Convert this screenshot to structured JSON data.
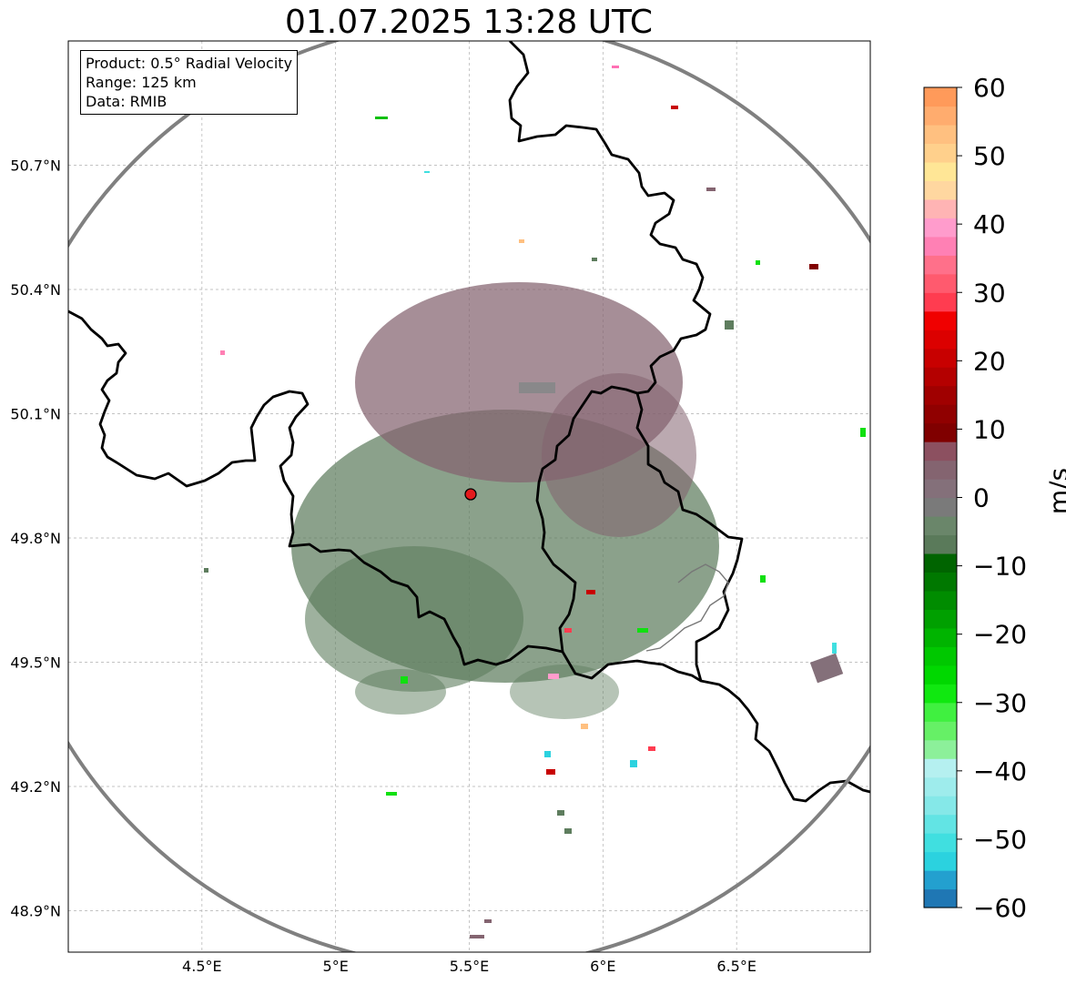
{
  "title": "01.07.2025 13:28 UTC",
  "infobox": {
    "product": "Product: 0.5° Radial Velocity",
    "range": "Range: 125 km",
    "data": "Data: RMIB"
  },
  "map": {
    "lon_range": [
      4.0,
      7.0
    ],
    "lat_range": [
      48.8,
      51.0
    ],
    "lon_ticks": [
      {
        "value": 4.5,
        "label": "4.5°E"
      },
      {
        "value": 5.0,
        "label": "5°E"
      },
      {
        "value": 5.5,
        "label": "5.5°E"
      },
      {
        "value": 6.0,
        "label": "6°E"
      },
      {
        "value": 6.5,
        "label": "6.5°E"
      }
    ],
    "lat_ticks": [
      {
        "value": 50.7,
        "label": "50.7°N"
      },
      {
        "value": 50.4,
        "label": "50.4°N"
      },
      {
        "value": 50.1,
        "label": "50.1°N"
      },
      {
        "value": 49.8,
        "label": "49.8°N"
      },
      {
        "value": 49.5,
        "label": "49.5°N"
      },
      {
        "value": 49.2,
        "label": "49.2°N"
      },
      {
        "value": 48.9,
        "label": "48.9°N"
      }
    ],
    "grid": true,
    "radar_site": {
      "lon": 5.51,
      "lat": 49.91
    },
    "range_ring_km": 125
  },
  "colorbar": {
    "label": "m/s",
    "min": -60,
    "max": 60,
    "ticks": [
      {
        "value": 60,
        "label": "60"
      },
      {
        "value": 50,
        "label": "50"
      },
      {
        "value": 40,
        "label": "40"
      },
      {
        "value": 30,
        "label": "30"
      },
      {
        "value": 20,
        "label": "20"
      },
      {
        "value": 10,
        "label": "10"
      },
      {
        "value": 0,
        "label": "0"
      },
      {
        "value": -10,
        "label": "−10"
      },
      {
        "value": -20,
        "label": "−20"
      },
      {
        "value": -30,
        "label": "−30"
      },
      {
        "value": -40,
        "label": "−40"
      },
      {
        "value": -50,
        "label": "−50"
      },
      {
        "value": -60,
        "label": "−60"
      }
    ],
    "colors": [
      "#1f77b4",
      "#23a0cf",
      "#2bd2df",
      "#40dfe0",
      "#62e4e4",
      "#85e8e8",
      "#9eecec",
      "#b5f0f0",
      "#8cf09a",
      "#66f066",
      "#40f040",
      "#10e810",
      "#00d800",
      "#00c800",
      "#00b400",
      "#00a000",
      "#008c00",
      "#007800",
      "#006400",
      "#5a7a5a",
      "#6a866a",
      "#7a7a7a",
      "#84707a",
      "#846470",
      "#8c5060",
      "#800000",
      "#900000",
      "#a00000",
      "#b40000",
      "#c80000",
      "#dc0000",
      "#f00000",
      "#ff3c50",
      "#ff5a6e",
      "#ff708a",
      "#ff80b4",
      "#ff9ccc",
      "#ffb4b4",
      "#ffd7a0",
      "#ffe696",
      "#ffd08c",
      "#ffc080",
      "#ffac6e",
      "#ff9a5a"
    ]
  }
}
